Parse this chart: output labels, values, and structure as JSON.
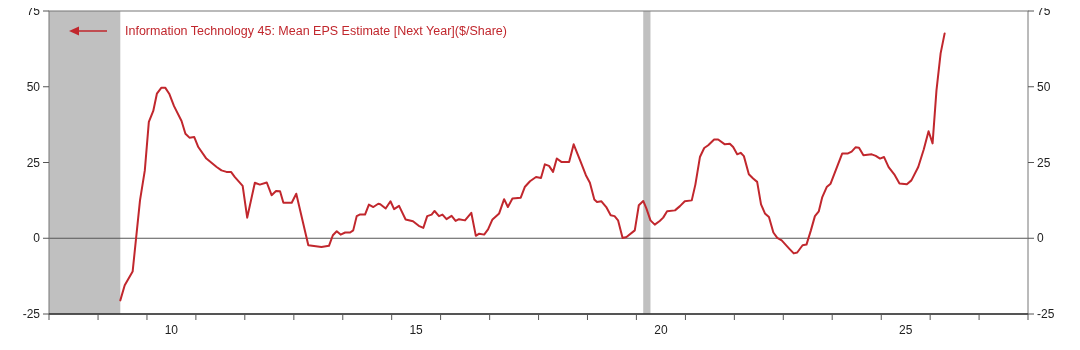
{
  "chart_data": {
    "type": "line",
    "x": [
      "2009-06-16",
      "2009-07-19",
      "2009-09-16",
      "2009-11-10",
      "2009-12-16",
      "2010-01-15",
      "2010-02-17",
      "2010-03-16",
      "2010-04-19",
      "2010-05-17",
      "2010-06-16",
      "2010-07-22",
      "2010-09-16",
      "2010-10-15",
      "2010-11-14",
      "2010-12-20",
      "2011-01-19",
      "2011-03-20",
      "2011-06-05",
      "2011-07-11",
      "2011-08-17",
      "2011-09-20",
      "2011-10-19",
      "2011-12-16",
      "2012-01-19",
      "2012-03-16",
      "2012-04-22",
      "2012-06-13",
      "2012-07-19",
      "2012-08-21",
      "2012-09-20",
      "2012-10-15",
      "2012-12-16",
      "2013-01-19",
      "2013-04-19",
      "2013-07-26",
      "2013-09-20",
      "2013-10-19",
      "2013-11-17",
      "2013-12-16",
      "2014-01-19",
      "2014-02-25",
      "2014-03-20",
      "2014-04-15",
      "2014-05-07",
      "2014-06-16",
      "2014-07-15",
      "2014-08-17",
      "2014-09-23",
      "2014-10-08",
      "2014-11-17",
      "2014-12-23",
      "2015-01-19",
      "2015-02-25",
      "2015-04-15",
      "2015-06-09",
      "2015-07-22",
      "2015-08-25",
      "2015-09-23",
      "2015-10-26",
      "2015-11-17",
      "2015-12-20",
      "2016-01-15",
      "2016-02-14",
      "2016-03-23",
      "2016-04-22",
      "2016-05-17",
      "2016-07-01",
      "2016-08-17",
      "2016-09-20",
      "2016-10-15",
      "2016-11-21",
      "2016-12-20",
      "2017-01-22",
      "2017-03-13",
      "2017-04-19",
      "2017-05-17",
      "2017-06-20",
      "2017-08-21",
      "2017-09-20",
      "2017-10-29",
      "2017-12-13",
      "2018-01-19",
      "2018-02-17",
      "2018-03-20",
      "2018-04-19",
      "2018-05-17",
      "2018-06-20",
      "2018-08-17",
      "2018-09-20",
      "2018-11-07",
      "2018-12-20",
      "2019-01-19",
      "2019-02-21",
      "2019-03-13",
      "2019-04-15",
      "2019-05-21",
      "2019-06-23",
      "2019-07-22",
      "2019-08-17",
      "2019-09-20",
      "2019-10-19",
      "2019-12-20",
      "2020-01-19",
      "2020-02-21",
      "2020-03-16",
      "2020-04-15",
      "2020-05-17",
      "2020-06-23",
      "2020-07-19",
      "2020-08-17",
      "2020-10-15",
      "2020-11-21",
      "2020-12-27",
      "2021-02-17",
      "2021-03-16",
      "2021-04-19",
      "2021-05-21",
      "2021-06-20",
      "2021-08-03",
      "2021-09-02",
      "2021-10-22",
      "2021-11-28",
      "2021-12-23",
      "2022-01-22",
      "2022-02-17",
      "2022-03-13",
      "2022-04-19",
      "2022-05-21",
      "2022-06-20",
      "2022-07-19",
      "2022-08-17",
      "2022-09-16",
      "2022-10-19",
      "2022-11-17",
      "2022-12-20",
      "2023-02-14",
      "2023-03-20",
      "2023-04-15",
      "2023-05-25",
      "2023-06-23",
      "2023-07-26",
      "2023-08-25",
      "2023-09-23",
      "2023-10-19",
      "2023-11-21",
      "2023-12-20",
      "2024-03-16",
      "2024-04-28",
      "2024-05-25",
      "2024-06-23",
      "2024-07-19",
      "2024-08-21",
      "2024-10-22",
      "2024-11-21",
      "2024-12-23",
      "2025-01-22",
      "2025-02-25",
      "2025-04-08",
      "2025-05-17",
      "2025-07-11",
      "2025-08-14",
      "2025-10-04",
      "2025-11-14",
      "2025-12-20",
      "2026-01-19",
      "2026-02-17",
      "2026-03-20",
      "2026-04-19"
    ],
    "series": [
      {
        "name": "Information Technology 45: Mean EPS Estimate [Next Year]($/Share)",
        "color": "#c1272d",
        "values": [
          -20.5,
          -15.5,
          -11,
          12.5,
          22.4,
          38.4,
          42,
          47.7,
          49.7,
          49.7,
          47.7,
          43.6,
          38.7,
          34.5,
          33.2,
          33.4,
          30.1,
          26.3,
          23.5,
          22.4,
          21.9,
          21.9,
          20.2,
          17.3,
          6.8,
          18.3,
          17.7,
          18.4,
          14.2,
          15.6,
          15.5,
          11.7,
          11.7,
          14.7,
          -2.3,
          -2.9,
          -2.5,
          1,
          2.3,
          1.2,
          1.9,
          1.9,
          2.6,
          7.3,
          7.8,
          7.8,
          11.1,
          10.3,
          11.4,
          11.2,
          9.8,
          12.2,
          9.6,
          10.7,
          6.2,
          5.6,
          4.1,
          3.4,
          7.3,
          7.8,
          9,
          7.3,
          7.8,
          6.3,
          7.4,
          5.7,
          6.3,
          5.9,
          8.4,
          0.8,
          1.5,
          1.2,
          2.9,
          6.2,
          8.2,
          12.9,
          10.3,
          13.1,
          13.4,
          16.9,
          18.8,
          20.2,
          19.9,
          24.4,
          23.9,
          21.9,
          26.3,
          25.2,
          25.2,
          31,
          25.7,
          20.8,
          18.3,
          12.8,
          12,
          12.2,
          10.3,
          7.6,
          7.3,
          5.9,
          0.1,
          0.4,
          2.6,
          10.9,
          12.3,
          9.8,
          5.9,
          4.5,
          5.7,
          6.8,
          8.9,
          9.2,
          10.6,
          12.2,
          12.5,
          17.7,
          26.8,
          29.8,
          30.7,
          32.6,
          32.6,
          31,
          31.2,
          30.1,
          27.7,
          28.2,
          27.1,
          21.1,
          19.7,
          18.6,
          11.2,
          8.2,
          7,
          1.9,
          0.1,
          -0.7,
          -3.4,
          -5,
          -4.7,
          -2.3,
          -2.1,
          2.6,
          7.3,
          8.9,
          13.6,
          16.9,
          18,
          28,
          28,
          28.6,
          30,
          29.9,
          27.4,
          27.7,
          27.2,
          26.3,
          26.8,
          23.5,
          21.1,
          18.1,
          17.8,
          19.1,
          23.5,
          29.3,
          35.3,
          31.3,
          48.8,
          61,
          67.6
        ]
      }
    ],
    "xlim": [
      "2008-01-01",
      "2028-01-01"
    ],
    "xticks": [
      {
        "value": "2008-01-01",
        "label": null
      },
      {
        "value": "2009-01-01",
        "label": null
      },
      {
        "value": "2010-01-01",
        "label": null
      },
      {
        "value": "2010-07-02",
        "label": "10"
      },
      {
        "value": "2011-01-01",
        "label": null
      },
      {
        "value": "2012-01-01",
        "label": null
      },
      {
        "value": "2013-01-01",
        "label": null
      },
      {
        "value": "2014-01-01",
        "label": null
      },
      {
        "value": "2015-01-01",
        "label": null
      },
      {
        "value": "2015-07-02",
        "label": "15"
      },
      {
        "value": "2016-01-01",
        "label": null
      },
      {
        "value": "2017-01-01",
        "label": null
      },
      {
        "value": "2018-01-01",
        "label": null
      },
      {
        "value": "2019-01-01",
        "label": null
      },
      {
        "value": "2020-01-01",
        "label": null
      },
      {
        "value": "2020-07-02",
        "label": "20"
      },
      {
        "value": "2021-01-01",
        "label": null
      },
      {
        "value": "2022-01-01",
        "label": null
      },
      {
        "value": "2023-01-01",
        "label": null
      },
      {
        "value": "2024-01-01",
        "label": null
      },
      {
        "value": "2025-01-01",
        "label": null
      },
      {
        "value": "2025-07-02",
        "label": "25"
      },
      {
        "value": "2026-01-01",
        "label": null
      },
      {
        "value": "2027-01-01",
        "label": null
      },
      {
        "value": "2028-01-01",
        "label": null
      }
    ],
    "ylim": [
      -25,
      75
    ],
    "yticks": [
      -25,
      0,
      25,
      50,
      75
    ],
    "y2lim": [
      -25,
      75
    ],
    "y2ticks": [
      -25,
      0,
      25,
      50,
      75
    ],
    "bands": [
      {
        "axis": "x",
        "from": "2008-01-01",
        "to": "2009-06-16",
        "color": "#c0c0c0"
      },
      {
        "axis": "x",
        "from": "2020-02-21",
        "to": "2020-04-15",
        "color": "#c0c0c0"
      }
    ],
    "ref_lines": [
      {
        "axis": "y",
        "value": 0,
        "color": "#555555"
      }
    ],
    "legend": "top left"
  }
}
